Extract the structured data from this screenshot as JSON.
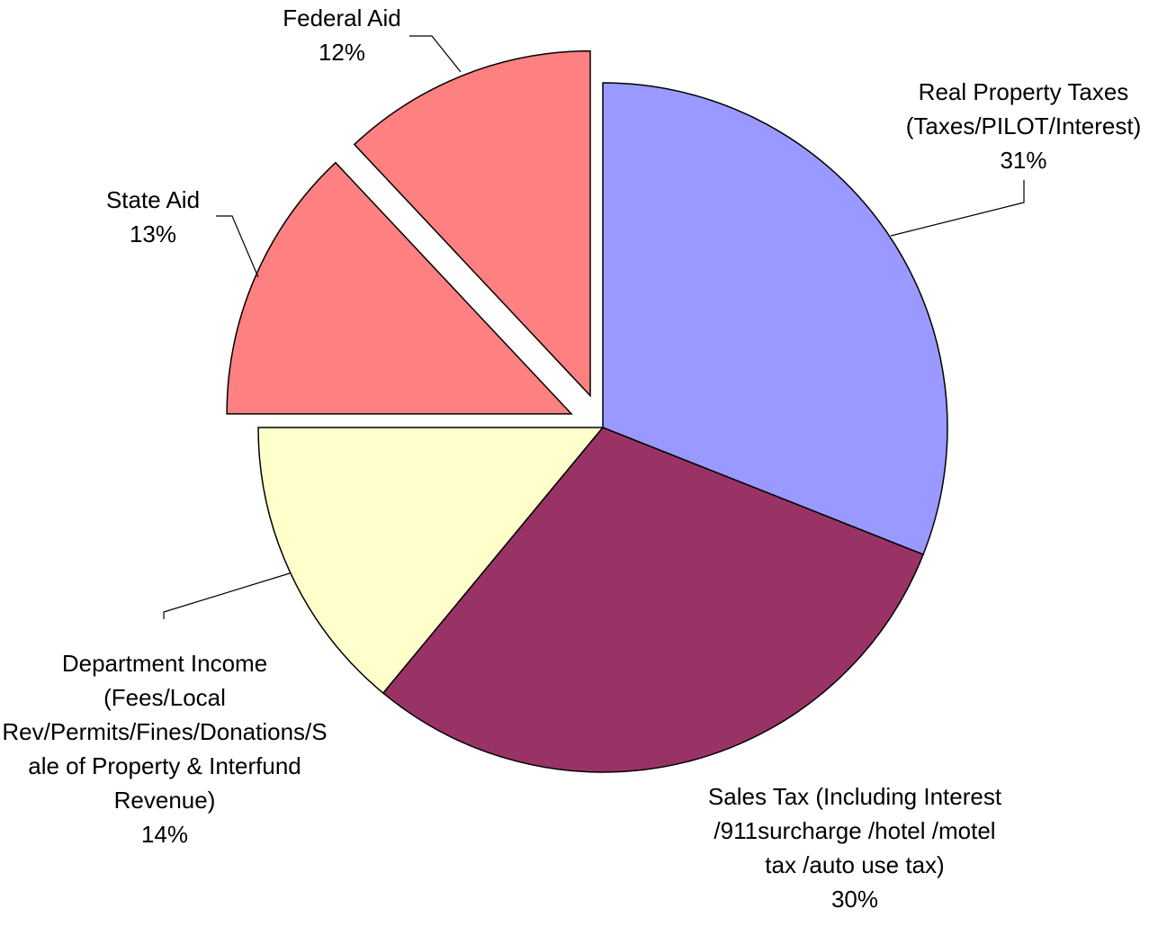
{
  "chart_data": {
    "type": "pie",
    "categories": [
      "Real Property Taxes (Taxes/PILOT/Interest)",
      "Sales Tax (Including Interest /911surcharge /hotel /motel tax /auto use tax)",
      "Department Income (Fees/Local Rev/Permits/Fines/Donations/Sale of Property & Interfund Revenue)",
      "State Aid",
      "Federal Aid"
    ],
    "values": [
      31,
      30,
      14,
      13,
      12
    ],
    "value_labels": [
      "31%",
      "30%",
      "14%",
      "13%",
      "12%"
    ],
    "colors": [
      "#9999ff",
      "#993366",
      "#ffffcc",
      "#ff8080",
      "#ff8080"
    ],
    "exploded": [
      false,
      false,
      false,
      true,
      true
    ]
  }
}
